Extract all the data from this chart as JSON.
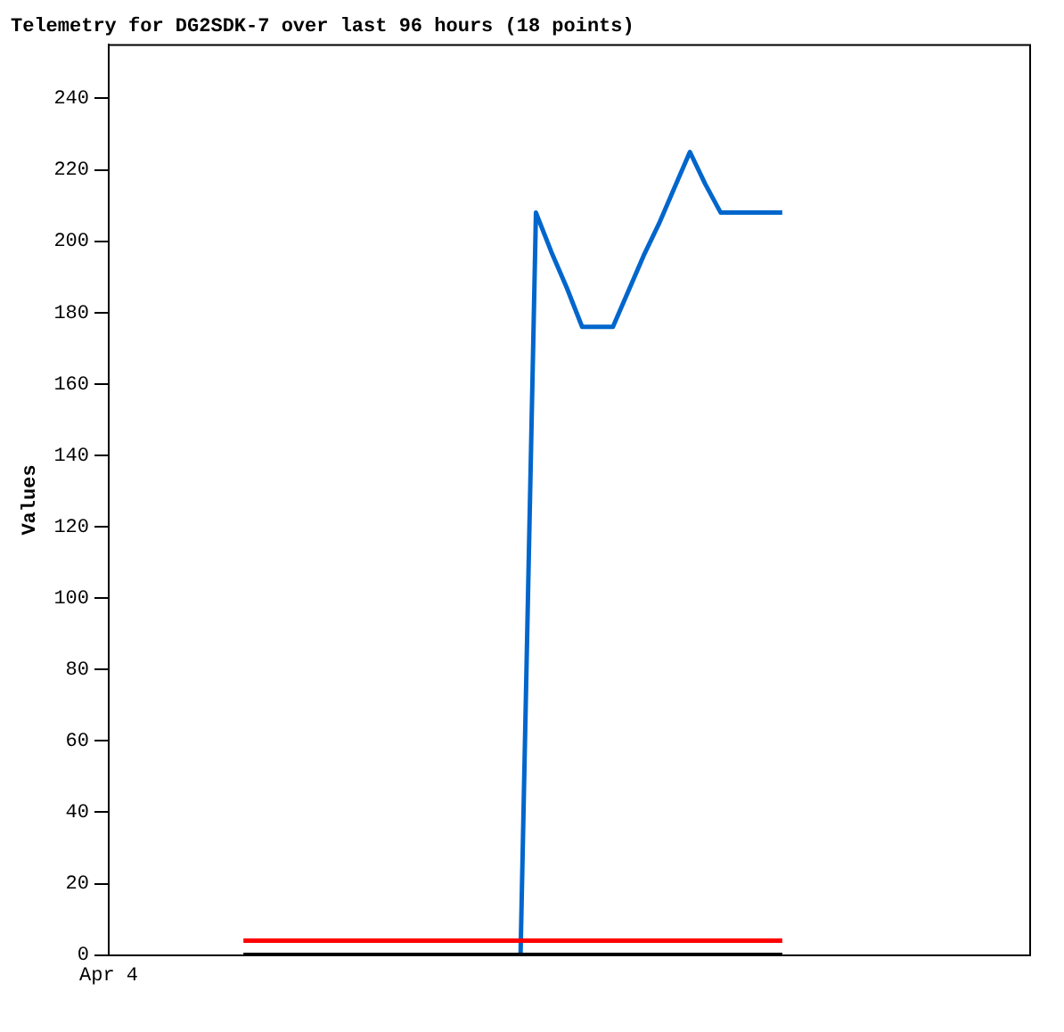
{
  "chart_data": {
    "type": "line",
    "title": "Telemetry for DG2SDK-7 over last 96 hours (18 points)",
    "ylabel": "Values",
    "annotations": [
      "Apr 4"
    ],
    "categories": [
      null,
      null,
      null,
      null,
      null,
      null,
      null,
      null,
      null,
      null,
      null,
      null,
      null,
      null,
      null,
      null,
      null,
      null,
      null,
      null,
      null,
      null,
      null,
      null,
      null,
      null,
      null,
      null,
      null,
      null,
      null,
      null,
      null,
      null,
      null,
      null
    ],
    "ylim": [
      0,
      255
    ],
    "yticks": [
      0,
      20,
      40,
      60,
      80,
      100,
      120,
      140,
      160,
      180,
      200,
      220,
      240
    ],
    "grid": false,
    "legend": false,
    "marker": "none",
    "line_style": "solid",
    "series": [
      {
        "color": "#000000",
        "values": [
          0,
          0,
          0,
          0,
          0,
          0,
          0,
          0,
          0,
          0,
          0,
          0,
          0,
          0,
          0,
          0,
          0,
          0,
          0,
          0,
          0,
          0,
          0,
          0,
          0,
          0,
          0,
          0,
          0,
          0,
          0,
          0,
          0,
          0,
          0,
          0
        ]
      },
      {
        "color": "#ff0000",
        "values": [
          4,
          4,
          4,
          4,
          4,
          4,
          4,
          4,
          4,
          4,
          4,
          4,
          4,
          4,
          4,
          4,
          4,
          4,
          4,
          4,
          4,
          4,
          4,
          4,
          4,
          4,
          4,
          4,
          4,
          4,
          4,
          4,
          4,
          4,
          4,
          4
        ]
      },
      {
        "color": "#0066cc",
        "values": [
          null,
          null,
          null,
          null,
          null,
          null,
          null,
          null,
          null,
          null,
          null,
          null,
          null,
          null,
          null,
          null,
          null,
          null,
          0,
          208,
          197,
          187,
          176,
          176,
          176,
          186,
          196,
          205,
          215,
          225,
          216,
          208,
          208,
          208,
          208,
          208
        ]
      }
    ]
  }
}
